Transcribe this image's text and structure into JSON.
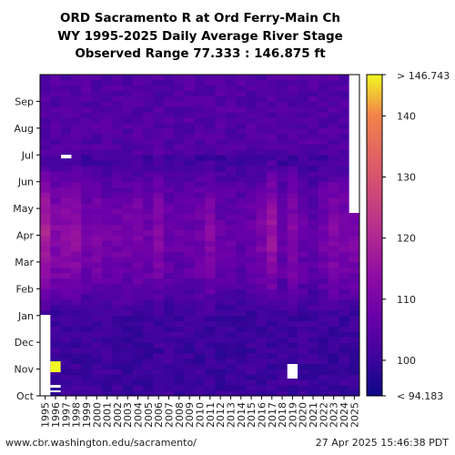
{
  "chart_data": {
    "type": "heatmap",
    "title_lines": [
      "ORD Sacramento R at Ord Ferry-Main Ch",
      "WY 1995-2025 Daily Average River Stage",
      "Observed Range 77.333 : 146.875 ft"
    ],
    "x_categories": [
      "1995",
      "1996",
      "1997",
      "1998",
      "1999",
      "2000",
      "2001",
      "2002",
      "2003",
      "2004",
      "2005",
      "2006",
      "2007",
      "2008",
      "2009",
      "2010",
      "2011",
      "2012",
      "2013",
      "2014",
      "2015",
      "2016",
      "2017",
      "2018",
      "2019",
      "2020",
      "2021",
      "2022",
      "2023",
      "2024",
      "2025"
    ],
    "y_categories": [
      "Oct",
      "Nov",
      "Dec",
      "Jan",
      "Feb",
      "Mar",
      "Apr",
      "May",
      "Jun",
      "Jul",
      "Aug",
      "Sep"
    ],
    "colorbar": {
      "colormap": "plasma",
      "vmin": 94.183,
      "vmax": 146.743,
      "tick_values": [
        100,
        110,
        120,
        130,
        140
      ],
      "tick_labels": [
        "100",
        "110",
        "120",
        "130",
        "140"
      ],
      "top_label": "> 146.743",
      "bottom_label": "< 94.183"
    },
    "missing_data_note": "white cells indicate missing data",
    "footer_left": "www.cbr.washington.edu/sacramento/",
    "footer_right": "27 Apr 2025 15:46:38 PDT"
  }
}
